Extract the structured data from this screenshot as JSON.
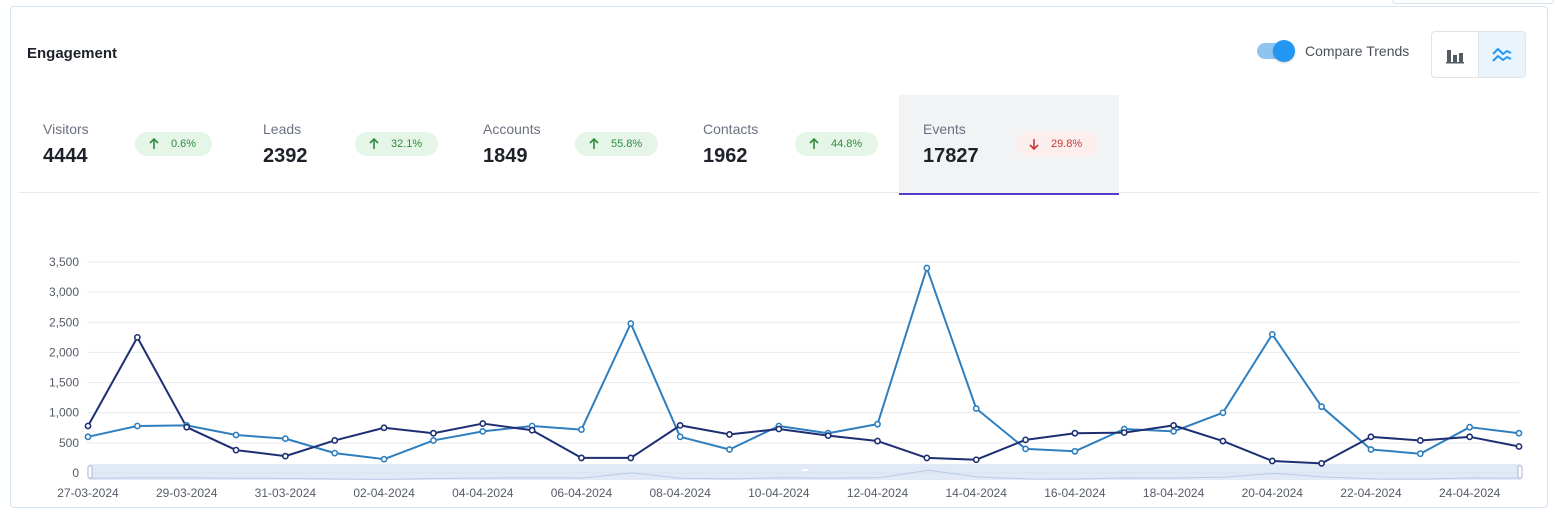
{
  "card": {
    "title": "Engagement"
  },
  "toggle": {
    "label": "Compare Trends",
    "on": true
  },
  "view_buttons": [
    {
      "icon": "bar-chart-icon",
      "active": false
    },
    {
      "icon": "line-chart-icon",
      "active": true
    }
  ],
  "metrics": [
    {
      "label": "Visitors",
      "value": "4444",
      "change": "0.6%",
      "direction": "up",
      "active": false
    },
    {
      "label": "Leads",
      "value": "2392",
      "change": "32.1%",
      "direction": "up",
      "active": false
    },
    {
      "label": "Accounts",
      "value": "1849",
      "change": "55.8%",
      "direction": "up",
      "active": false
    },
    {
      "label": "Contacts",
      "value": "1962",
      "change": "44.8%",
      "direction": "up",
      "active": false
    },
    {
      "label": "Events",
      "value": "17827",
      "change": "29.8%",
      "direction": "down",
      "active": true
    }
  ],
  "colors": {
    "series_current": "#2f7fbf",
    "series_previous": "#1d2f72",
    "badge_up_bg": "#e5f6e9",
    "badge_up_text": "#2e8b3e",
    "badge_down_bg": "#fdeeee",
    "badge_down_text": "#c43a3a",
    "active_tab_underline": "#5b3bc9",
    "toggle_on": "#2196f3"
  },
  "chart_data": {
    "type": "line",
    "x": [
      "27-03-2024",
      "28-03-2024",
      "29-03-2024",
      "30-03-2024",
      "31-03-2024",
      "01-04-2024",
      "02-04-2024",
      "03-04-2024",
      "04-04-2024",
      "05-04-2024",
      "06-04-2024",
      "07-04-2024",
      "08-04-2024",
      "09-04-2024",
      "10-04-2024",
      "11-04-2024",
      "12-04-2024",
      "13-04-2024",
      "14-04-2024",
      "15-04-2024",
      "16-04-2024",
      "17-04-2024",
      "18-04-2024",
      "19-04-2024",
      "20-04-2024",
      "21-04-2024",
      "22-04-2024",
      "23-04-2024",
      "24-04-2024",
      "25-04-2024"
    ],
    "x_tick_labels": [
      "27-03-2024",
      "29-03-2024",
      "31-03-2024",
      "02-04-2024",
      "04-04-2024",
      "06-04-2024",
      "08-04-2024",
      "10-04-2024",
      "12-04-2024",
      "14-04-2024",
      "16-04-2024",
      "18-04-2024",
      "20-04-2024",
      "22-04-2024",
      "24-04-2024"
    ],
    "series": [
      {
        "values": [
          600,
          780,
          790,
          630,
          570,
          330,
          230,
          540,
          690,
          780,
          720,
          2480,
          600,
          390,
          780,
          660,
          810,
          3400,
          1070,
          400,
          360,
          730,
          690,
          1000,
          2300,
          1100,
          390,
          320,
          760,
          660
        ]
      },
      {
        "values": [
          780,
          2250,
          760,
          380,
          280,
          540,
          750,
          660,
          820,
          710,
          250,
          250,
          790,
          640,
          730,
          620,
          530,
          250,
          220,
          550,
          660,
          670,
          790,
          530,
          200,
          160,
          600,
          540,
          600,
          440
        ]
      }
    ],
    "ylim": [
      0,
      3500
    ],
    "y_ticks": [
      0,
      500,
      1000,
      1500,
      2000,
      2500,
      3000,
      3500
    ],
    "y_tick_labels": [
      "0",
      "500",
      "1,000",
      "1,500",
      "2,000",
      "2,500",
      "3,000",
      "3,500"
    ],
    "grid": true,
    "legend": "none",
    "zoom_slider": true
  }
}
